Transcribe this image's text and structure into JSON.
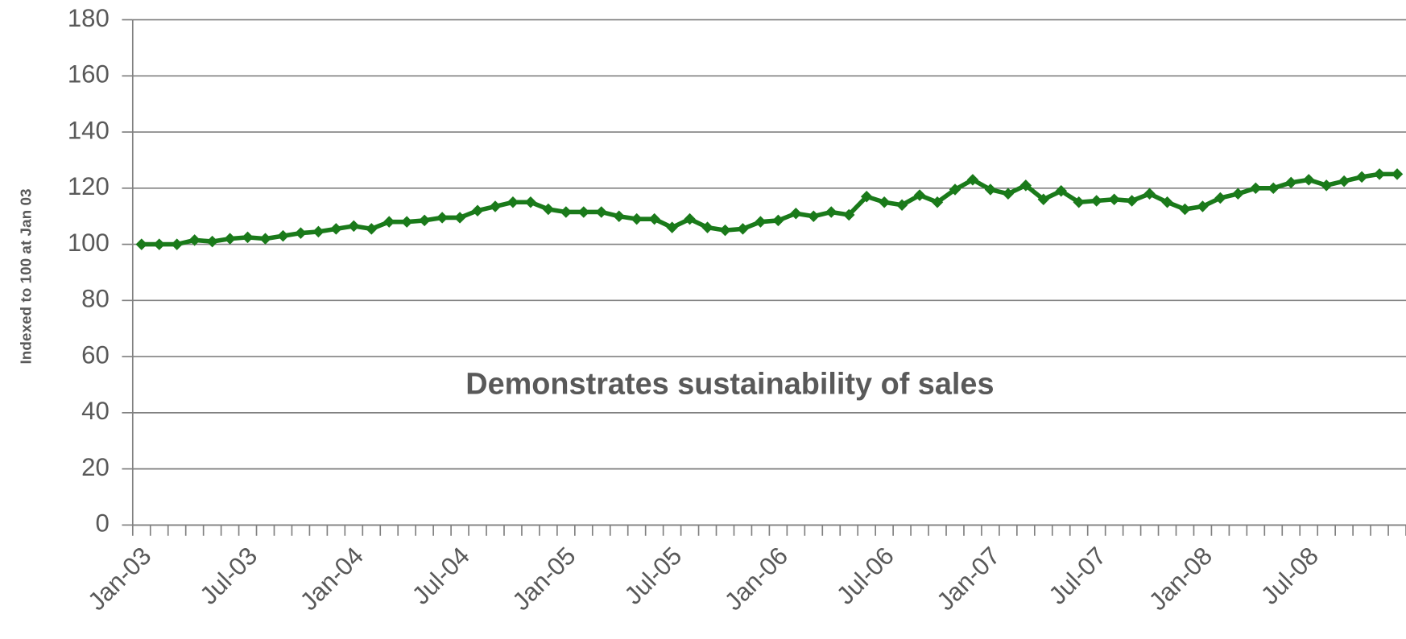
{
  "chart_data": {
    "type": "line",
    "y_label": "Indexed to 100 at Jan 03",
    "annotation": "Demonstrates sustainability of sales",
    "categories": [
      "Jan-03",
      null,
      null,
      null,
      null,
      null,
      "Jul-03",
      null,
      null,
      null,
      null,
      null,
      "Jan-04",
      null,
      null,
      null,
      null,
      null,
      "Jul-04",
      null,
      null,
      null,
      null,
      null,
      "Jan-05",
      null,
      null,
      null,
      null,
      null,
      "Jul-05",
      null,
      null,
      null,
      null,
      null,
      "Jan-06",
      null,
      null,
      null,
      null,
      null,
      "Jul-06",
      null,
      null,
      null,
      null,
      null,
      "Jan-07",
      null,
      null,
      null,
      null,
      null,
      "Jul-07",
      null,
      null,
      null,
      null,
      null,
      "Jan-08",
      null,
      null,
      null,
      null,
      null,
      "Jul-08",
      null,
      null,
      null,
      null,
      null
    ],
    "series": [
      {
        "color": "#1a7a1a",
        "values": [
          100,
          100,
          100,
          101.5,
          101,
          102,
          102.5,
          102,
          103,
          104,
          104.5,
          105.5,
          106.5,
          105.5,
          108,
          108,
          108.5,
          109.5,
          109.5,
          112,
          113.5,
          115,
          115,
          112.5,
          111.5,
          111.5,
          111.5,
          110,
          109,
          109,
          106,
          109,
          106,
          105,
          105.5,
          108,
          108.5,
          111,
          110,
          111.5,
          110.5,
          117,
          115,
          114,
          117.5,
          115,
          119.5,
          123,
          119.5,
          118,
          121,
          116,
          119,
          115,
          115.5,
          116,
          115.5,
          118,
          115,
          112.5,
          113.5,
          116.5,
          118,
          120,
          120,
          122,
          123,
          121,
          122.5,
          124,
          125,
          125
        ]
      }
    ],
    "ylim": [
      0,
      180
    ],
    "yticks": [
      0,
      20,
      40,
      60,
      80,
      100,
      120,
      140,
      160,
      180
    ],
    "grid": true
  }
}
